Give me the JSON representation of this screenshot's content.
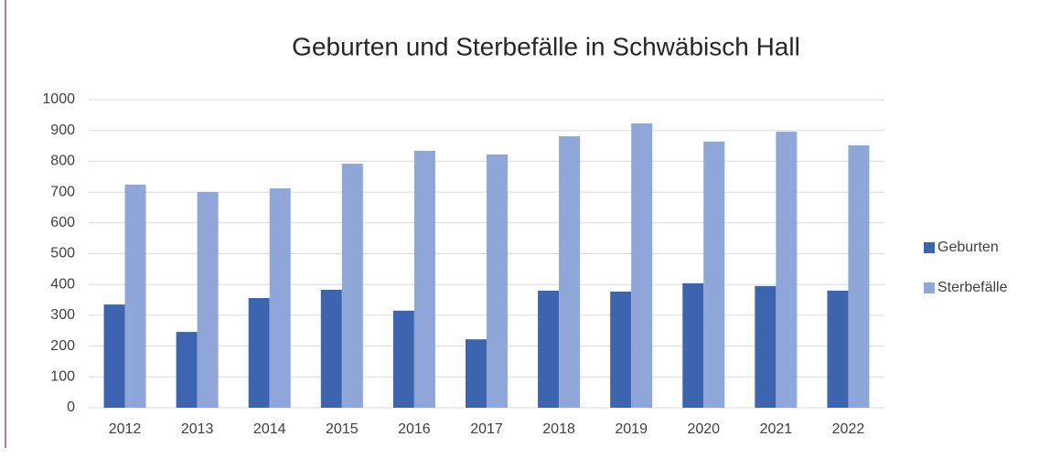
{
  "chart_data": {
    "type": "bar",
    "title": "Geburten und Sterbefälle in Schwäbisch Hall",
    "categories": [
      "2012",
      "2013",
      "2014",
      "2015",
      "2016",
      "2017",
      "2018",
      "2019",
      "2020",
      "2021",
      "2022"
    ],
    "series": [
      {
        "name": "Geburten",
        "color": "#3d64ae",
        "values": [
          335,
          246,
          356,
          383,
          315,
          222,
          380,
          377,
          404,
          395,
          380
        ]
      },
      {
        "name": "Sterbefälle",
        "color": "#8fa6d8",
        "values": [
          724,
          700,
          712,
          792,
          834,
          822,
          881,
          923,
          864,
          896,
          852
        ]
      }
    ],
    "ylim": [
      0,
      1000
    ],
    "yticks": [
      0,
      100,
      200,
      300,
      400,
      500,
      600,
      700,
      800,
      900,
      1000
    ],
    "grid": true,
    "legend": "right"
  }
}
